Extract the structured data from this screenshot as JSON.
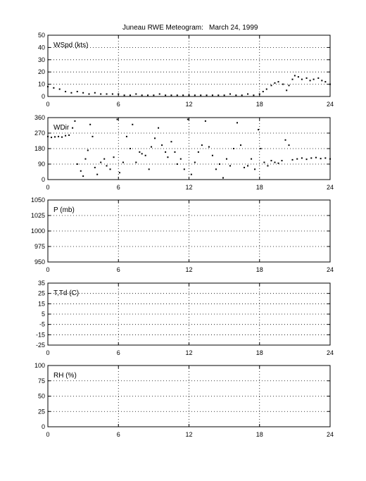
{
  "header": {
    "title": "Juneau RWE Meteogram:",
    "date": "March 24, 1999"
  },
  "chart_data": [
    {
      "type": "scatter",
      "label": "WSpd (kts)",
      "xlim": [
        0,
        24
      ],
      "xticks": [
        0,
        6,
        12,
        18,
        24
      ],
      "ylim": [
        0,
        50
      ],
      "yticks": [
        0,
        10,
        20,
        30,
        40,
        50
      ],
      "grid": true,
      "color": "#000000",
      "series": [
        {
          "x": [
            0,
            0.5,
            1,
            1.5,
            2,
            2.5,
            3,
            3.5,
            4,
            4.5,
            5,
            5.5,
            6,
            6.5,
            7,
            7.5,
            8,
            8.5,
            9,
            9.5,
            10,
            10.5,
            11,
            11.5,
            12,
            12.5,
            13,
            13.5,
            14,
            14.5,
            15,
            15.5,
            16,
            16.5,
            17,
            17.5,
            18,
            18.3,
            18.6,
            19,
            19.3,
            19.6,
            20,
            20.3,
            20.5,
            20.8,
            21,
            21.3,
            21.6,
            22,
            22.3,
            22.6,
            23,
            23.3,
            23.6,
            24
          ],
          "y": [
            8,
            7,
            6,
            4,
            3,
            4,
            3,
            2,
            3,
            2,
            2,
            2,
            2,
            1,
            1,
            2,
            1,
            1,
            1,
            2,
            1,
            1,
            1,
            1,
            1,
            1,
            1,
            1,
            1,
            1,
            1,
            2,
            1,
            1,
            2,
            1,
            2,
            4,
            6,
            9,
            11,
            12,
            10,
            5,
            9,
            14,
            17,
            16,
            14,
            15,
            13,
            14,
            15,
            13,
            12,
            10
          ]
        }
      ]
    },
    {
      "type": "scatter",
      "label": "WDir",
      "xlim": [
        0,
        24
      ],
      "xticks": [
        0,
        6,
        12,
        18,
        24
      ],
      "ylim": [
        0,
        360
      ],
      "yticks": [
        0,
        90,
        180,
        270,
        360
      ],
      "grid": true,
      "color": "#000000",
      "series": [
        {
          "x": [
            0,
            0.3,
            0.6,
            0.9,
            1.2,
            1.5,
            1.8,
            2.1,
            2.3,
            2.5,
            2.8,
            3.0,
            3.2,
            3.4,
            3.6,
            3.8,
            4.0,
            4.2,
            4.5,
            4.8,
            5.0,
            5.3,
            5.6,
            5.9,
            6.1,
            6.4,
            6.7,
            7.0,
            7.2,
            7.5,
            7.8,
            8.0,
            8.3,
            8.6,
            8.8,
            9.1,
            9.4,
            9.7,
            10.0,
            10.2,
            10.5,
            10.8,
            11.0,
            11.3,
            11.6,
            11.9,
            12.2,
            12.5,
            12.8,
            13.1,
            13.4,
            13.7,
            14.0,
            14.3,
            14.6,
            14.9,
            15.2,
            15.5,
            15.8,
            16.1,
            16.4,
            16.7,
            17.0,
            17.3,
            17.6,
            17.9,
            18.1,
            18.4,
            18.7,
            19.0,
            19.3,
            19.6,
            19.9,
            20.2,
            20.5,
            20.8,
            21.2,
            21.6,
            22.0,
            22.4,
            22.8,
            23.2,
            23.6,
            24.0
          ],
          "y": [
            250,
            245,
            248,
            250,
            247,
            255,
            258,
            300,
            340,
            90,
            50,
            20,
            120,
            170,
            320,
            250,
            70,
            30,
            100,
            120,
            80,
            60,
            130,
            350,
            40,
            100,
            250,
            180,
            320,
            100,
            160,
            150,
            140,
            60,
            190,
            240,
            300,
            200,
            160,
            130,
            220,
            160,
            90,
            120,
            60,
            350,
            30,
            100,
            160,
            200,
            340,
            190,
            140,
            60,
            90,
            10,
            120,
            80,
            180,
            330,
            200,
            70,
            80,
            120,
            60,
            290,
            180,
            100,
            80,
            110,
            100,
            95,
            110,
            230,
            200,
            115,
            120,
            125,
            118,
            125,
            128,
            122,
            125,
            120
          ]
        }
      ]
    },
    {
      "type": "line",
      "label": "P (mb)",
      "xlim": [
        0,
        24
      ],
      "xticks": [
        0,
        6,
        12,
        18,
        24
      ],
      "ylim": [
        950,
        1050
      ],
      "yticks": [
        950,
        975,
        1000,
        1025,
        1050
      ],
      "grid": true,
      "series": []
    },
    {
      "type": "line",
      "label": "T,Td (C)",
      "xlim": [
        0,
        24
      ],
      "xticks": [
        0,
        6,
        12,
        18,
        24
      ],
      "ylim": [
        -25,
        35
      ],
      "yticks": [
        -25,
        -15,
        -5,
        5,
        15,
        25,
        35
      ],
      "grid": true,
      "series": []
    },
    {
      "type": "line",
      "label": "RH (%)",
      "xlim": [
        0,
        24
      ],
      "xticks": [
        0,
        6,
        12,
        18,
        24
      ],
      "ylim": [
        0,
        100
      ],
      "yticks": [
        0,
        25,
        50,
        75,
        100
      ],
      "grid": true,
      "series": []
    }
  ]
}
